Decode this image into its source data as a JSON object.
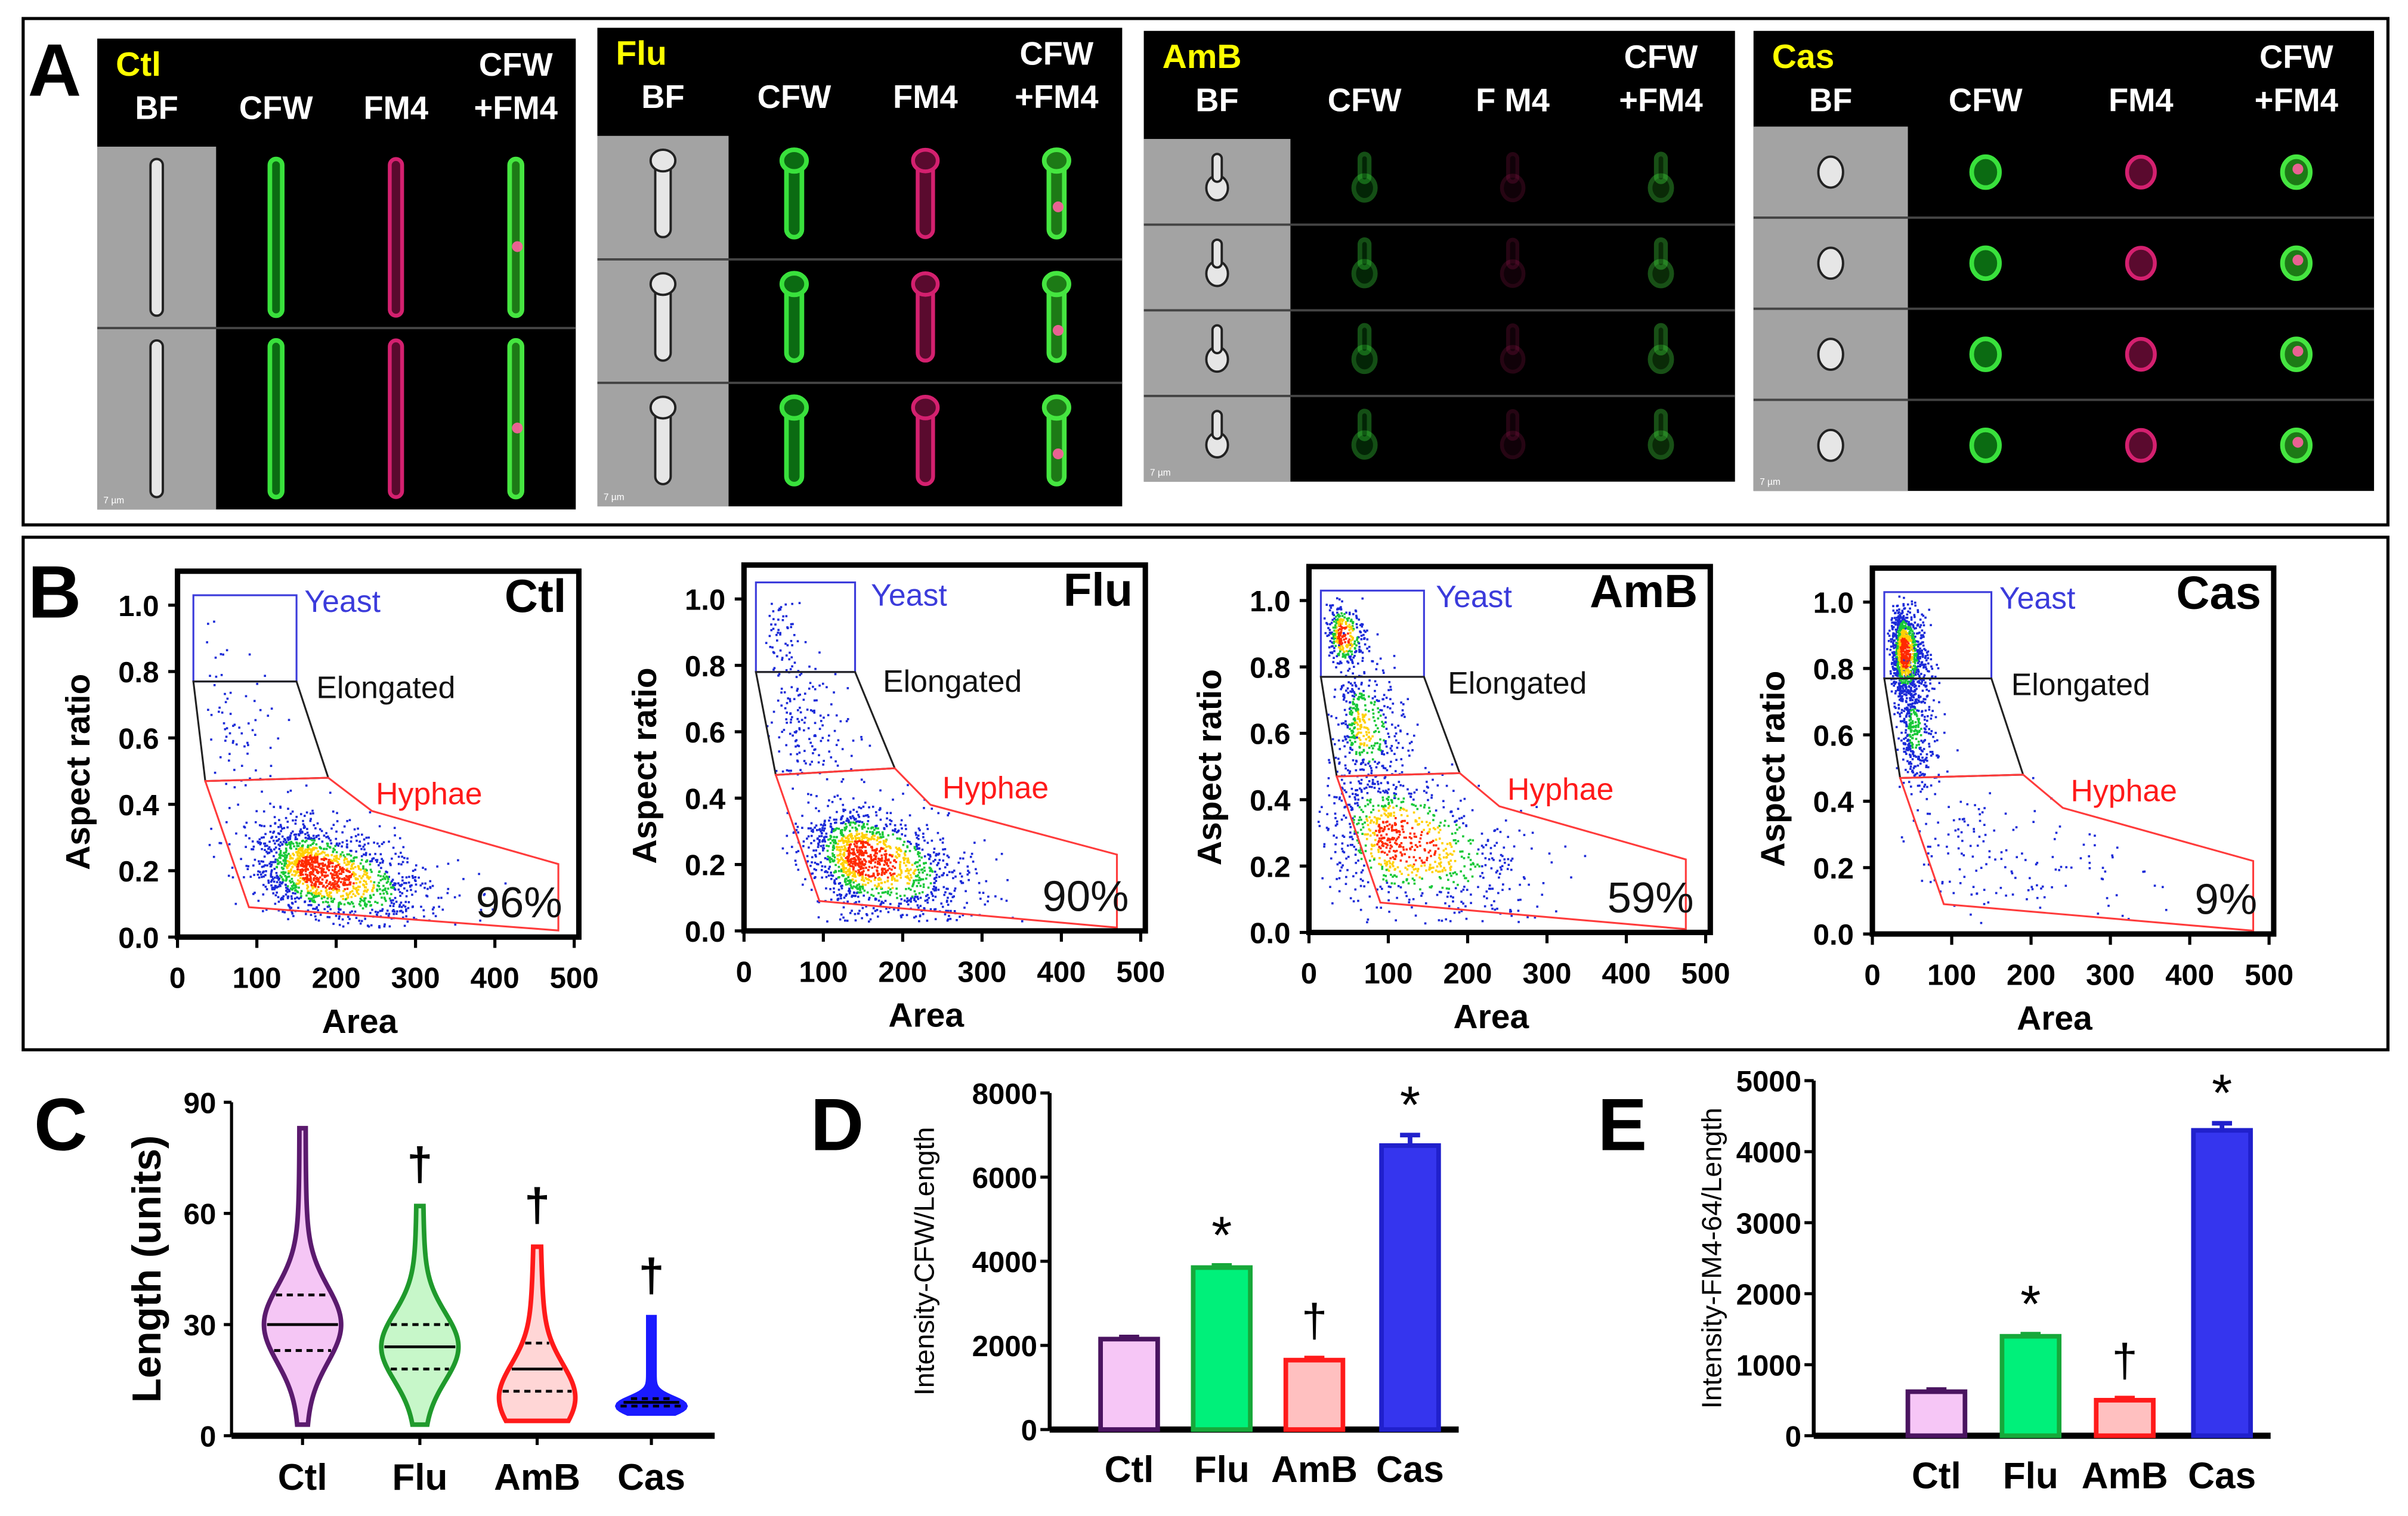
{
  "panel_labels": {
    "A": "A",
    "B": "B",
    "C": "C",
    "D": "D",
    "E": "E"
  },
  "panel_a": {
    "conditions": [
      {
        "name": "Ctl",
        "columns": [
          "BF",
          "CFW",
          "FM4",
          "CFW",
          "+FM4"
        ],
        "scale_bar": "7 µm"
      },
      {
        "name": "Flu",
        "columns": [
          "BF",
          "CFW",
          "FM4",
          "CFW",
          "+FM4"
        ],
        "scale_bar": "7 µm"
      },
      {
        "name": "AmB",
        "columns": [
          "BF",
          "CFW",
          "F M4",
          "CFW",
          "+FM4"
        ],
        "scale_bar": "7 µm"
      },
      {
        "name": "Cas",
        "columns": [
          "BF",
          "CFW",
          "FM4",
          "CFW",
          "+FM4"
        ],
        "scale_bar": "7 µm"
      }
    ]
  },
  "colors": {
    "ctl": "#5b1a6e",
    "flu": "#1f9a2c",
    "amb": "#ff1a1a",
    "cas": "#1a1aff",
    "yeast_gate": "#3b3bdb",
    "hyphae_gate": "#ff3b3b",
    "condition_label": "#ffff00"
  },
  "chart_data": [
    {
      "panel": "B",
      "type": "scatter",
      "title": "Ctl",
      "xlabel": "Area",
      "ylabel": "Aspect ratio",
      "xlim": [
        0,
        500
      ],
      "ylim": [
        0,
        1.0
      ],
      "xticks": [
        "0",
        "100",
        "200",
        "300",
        "400",
        "500"
      ],
      "yticks": [
        "0.0",
        "0.2",
        "0.4",
        "0.6",
        "0.8",
        "1.0"
      ],
      "gates": [
        {
          "name": "Yeast",
          "polygon": [
            [
              20,
              0.77
            ],
            [
              150,
              0.77
            ],
            [
              150,
              1.03
            ],
            [
              20,
              1.03
            ]
          ]
        },
        {
          "name": "Elongated",
          "polygon": [
            [
              20,
              0.77
            ],
            [
              150,
              0.77
            ],
            [
              190,
              0.48
            ],
            [
              35,
              0.47
            ]
          ]
        },
        {
          "name": "Hyphae",
          "polygon": [
            [
              35,
              0.47
            ],
            [
              190,
              0.48
            ],
            [
              245,
              0.38
            ],
            [
              480,
              0.22
            ],
            [
              480,
              0.02
            ],
            [
              90,
              0.09
            ]
          ]
        }
      ],
      "hyphae_percent": "96%"
    },
    {
      "panel": "B",
      "type": "scatter",
      "title": "Flu",
      "xlabel": "Area",
      "ylabel": "Aspect ratio",
      "xlim": [
        0,
        500
      ],
      "ylim": [
        0,
        1.0
      ],
      "xticks": [
        "0",
        "100",
        "200",
        "300",
        "400",
        "500"
      ],
      "yticks": [
        "0.0",
        "0.2",
        "0.4",
        "0.6",
        "0.8",
        "1.0"
      ],
      "gates": [
        {
          "name": "Yeast",
          "polygon": [
            [
              15,
              0.78
            ],
            [
              140,
              0.78
            ],
            [
              140,
              1.05
            ],
            [
              15,
              1.05
            ]
          ]
        },
        {
          "name": "Elongated",
          "polygon": [
            [
              15,
              0.78
            ],
            [
              140,
              0.78
            ],
            [
              190,
              0.49
            ],
            [
              40,
              0.47
            ]
          ]
        },
        {
          "name": "Hyphae",
          "polygon": [
            [
              40,
              0.47
            ],
            [
              190,
              0.49
            ],
            [
              235,
              0.38
            ],
            [
              470,
              0.23
            ],
            [
              470,
              0.01
            ],
            [
              95,
              0.09
            ]
          ]
        }
      ],
      "hyphae_percent": "90%"
    },
    {
      "panel": "B",
      "type": "scatter",
      "title": "AmB",
      "xlabel": "Area",
      "ylabel": "Aspect ratio",
      "xlim": [
        0,
        500
      ],
      "ylim": [
        0,
        1.0
      ],
      "xticks": [
        "0",
        "100",
        "200",
        "300",
        "400",
        "500"
      ],
      "yticks": [
        "0.0",
        "0.2",
        "0.4",
        "0.6",
        "0.8",
        "1.0"
      ],
      "gates": [
        {
          "name": "Yeast",
          "polygon": [
            [
              15,
              0.77
            ],
            [
              145,
              0.77
            ],
            [
              145,
              1.03
            ],
            [
              15,
              1.03
            ]
          ]
        },
        {
          "name": "Elongated",
          "polygon": [
            [
              15,
              0.77
            ],
            [
              145,
              0.77
            ],
            [
              190,
              0.48
            ],
            [
              35,
              0.47
            ]
          ]
        },
        {
          "name": "Hyphae",
          "polygon": [
            [
              35,
              0.47
            ],
            [
              190,
              0.48
            ],
            [
              240,
              0.38
            ],
            [
              475,
              0.22
            ],
            [
              475,
              0.01
            ],
            [
              90,
              0.09
            ]
          ]
        }
      ],
      "hyphae_percent": "59%"
    },
    {
      "panel": "B",
      "type": "scatter",
      "title": "Cas",
      "xlabel": "Area",
      "ylabel": "Aspect ratio",
      "xlim": [
        0,
        500
      ],
      "ylim": [
        0,
        1.0
      ],
      "xticks": [
        "0",
        "100",
        "200",
        "300",
        "400",
        "500"
      ],
      "yticks": [
        "0.0",
        "0.2",
        "0.4",
        "0.6",
        "0.8",
        "1.0"
      ],
      "gates": [
        {
          "name": "Yeast",
          "polygon": [
            [
              15,
              0.77
            ],
            [
              150,
              0.77
            ],
            [
              150,
              1.03
            ],
            [
              15,
              1.03
            ]
          ]
        },
        {
          "name": "Elongated",
          "polygon": [
            [
              15,
              0.77
            ],
            [
              150,
              0.77
            ],
            [
              190,
              0.48
            ],
            [
              35,
              0.47
            ]
          ]
        },
        {
          "name": "Hyphae",
          "polygon": [
            [
              35,
              0.47
            ],
            [
              190,
              0.48
            ],
            [
              240,
              0.38
            ],
            [
              480,
              0.22
            ],
            [
              480,
              0.01
            ],
            [
              90,
              0.09
            ]
          ]
        }
      ],
      "hyphae_percent": "9%"
    },
    {
      "panel": "C",
      "type": "violin",
      "ylabel": "Length (units)",
      "ylim": [
        0,
        90
      ],
      "yticks": [
        "0",
        "30",
        "60",
        "90"
      ],
      "categories": [
        "Ctl",
        "Flu",
        "AmB",
        "Cas"
      ],
      "series": [
        {
          "name": "Ctl",
          "min": 3,
          "q1": 23,
          "median": 30,
          "q3": 38,
          "max": 83,
          "marker": ""
        },
        {
          "name": "Flu",
          "min": 3,
          "q1": 18,
          "median": 24,
          "q3": 30,
          "max": 62,
          "marker": "†"
        },
        {
          "name": "AmB",
          "min": 4,
          "q1": 12,
          "median": 18,
          "q3": 25,
          "max": 51,
          "marker": "†"
        },
        {
          "name": "Cas",
          "min": 6,
          "q1": 8,
          "median": 9,
          "q3": 10,
          "max": 32,
          "marker": "†"
        }
      ]
    },
    {
      "panel": "D",
      "type": "bar",
      "ylabel": "Intensity-CFW/Length",
      "ylim": [
        0,
        8000
      ],
      "yticks": [
        "0",
        "2000",
        "4000",
        "6000",
        "8000"
      ],
      "categories": [
        "Ctl",
        "Flu",
        "AmB",
        "Cas"
      ],
      "values": [
        2150,
        3850,
        1650,
        6750
      ],
      "errors": [
        50,
        50,
        50,
        250
      ],
      "markers": [
        "",
        "*",
        "†",
        "*"
      ]
    },
    {
      "panel": "E",
      "type": "bar",
      "ylabel": "Intensity-FM4-64/Length",
      "ylim": [
        0,
        5000
      ],
      "yticks": [
        "0",
        "1000",
        "2000",
        "3000",
        "4000",
        "5000"
      ],
      "categories": [
        "Ctl",
        "Flu",
        "AmB",
        "Cas"
      ],
      "values": [
        620,
        1400,
        500,
        4300
      ],
      "errors": [
        30,
        30,
        30,
        100
      ],
      "markers": [
        "",
        "*",
        "†",
        "*"
      ]
    }
  ]
}
